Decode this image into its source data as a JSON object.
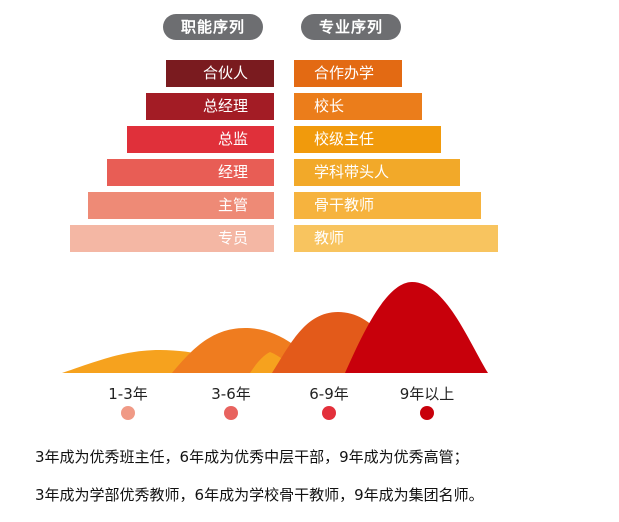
{
  "headers": {
    "left": "职能序列",
    "right": "专业序列"
  },
  "functional_sequence": [
    {
      "label": "合伙人",
      "color": "#7a1b1f"
    },
    {
      "label": "总经理",
      "color": "#a31c25"
    },
    {
      "label": "总监",
      "color": "#e0303a"
    },
    {
      "label": "经理",
      "color": "#e85d55"
    },
    {
      "label": "主管",
      "color": "#ee8a76"
    },
    {
      "label": "专员",
      "color": "#f4b7a4"
    }
  ],
  "professional_sequence": [
    {
      "label": "合作办学",
      "color": "#e36a13"
    },
    {
      "label": "校长",
      "color": "#eb7d1b"
    },
    {
      "label": "校级主任",
      "color": "#f19a0c"
    },
    {
      "label": "学科带头人",
      "color": "#f2a929"
    },
    {
      "label": "骨干教师",
      "color": "#f6b33e"
    },
    {
      "label": "教师",
      "color": "#f8c45f"
    }
  ],
  "stages": [
    {
      "label": "1-3年",
      "color": "#f09a86",
      "hill_color": "#f6a21e"
    },
    {
      "label": "3-6年",
      "color": "#e8635f",
      "hill_color": "#ef7c1f"
    },
    {
      "label": "6-9年",
      "color": "#e3303b",
      "hill_color": "#e35a1a"
    },
    {
      "label": "9年以上",
      "color": "#c8000b",
      "hill_color": "#c8000b"
    }
  ],
  "summary": {
    "line1": "3年成为优秀班主任，6年成为优秀中层干部，9年成为优秀高管；",
    "line2": "3年成为学部优秀教师，6年成为学校骨干教师，9年成为集团名师。"
  }
}
